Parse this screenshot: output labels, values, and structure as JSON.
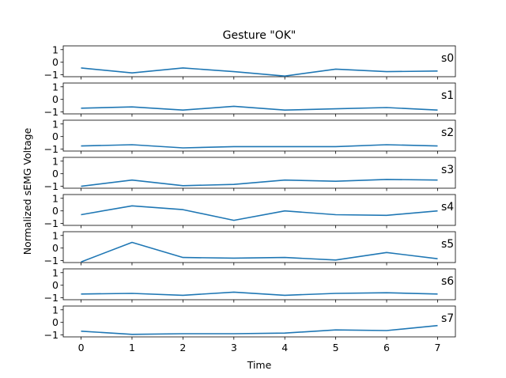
{
  "chart_data": {
    "type": "line",
    "title": "Gesture \"OK\"",
    "xlabel": "Time",
    "ylabel": "Normalized sEMG Voltage",
    "x": [
      0,
      1,
      2,
      3,
      4,
      5,
      6,
      7
    ],
    "xticks": [
      "0",
      "1",
      "2",
      "3",
      "4",
      "5",
      "6",
      "7"
    ],
    "xlim": [
      -0.35,
      7.35
    ],
    "ylim": [
      -1.15,
      1.3
    ],
    "yticks": [
      1,
      0,
      -1
    ],
    "ytick_labels": [
      "1",
      "0",
      "−1"
    ],
    "grid": false,
    "line_color": "#1f77b4",
    "series": [
      {
        "name": "s0",
        "values": [
          -0.45,
          -0.85,
          -0.45,
          -0.75,
          -1.1,
          -0.55,
          -0.75,
          -0.7
        ]
      },
      {
        "name": "s1",
        "values": [
          -0.7,
          -0.6,
          -0.85,
          -0.55,
          -0.85,
          -0.75,
          -0.65,
          -0.85
        ]
      },
      {
        "name": "s2",
        "values": [
          -0.75,
          -0.65,
          -0.9,
          -0.8,
          -0.8,
          -0.8,
          -0.65,
          -0.75
        ]
      },
      {
        "name": "s3",
        "values": [
          -1.0,
          -0.5,
          -0.95,
          -0.85,
          -0.5,
          -0.6,
          -0.45,
          -0.5
        ]
      },
      {
        "name": "s4",
        "values": [
          -0.3,
          0.4,
          0.1,
          -0.75,
          0.0,
          -0.3,
          -0.35,
          0.0
        ]
      },
      {
        "name": "s5",
        "values": [
          -1.1,
          0.45,
          -0.75,
          -0.8,
          -0.75,
          -0.95,
          -0.35,
          -0.85
        ]
      },
      {
        "name": "s6",
        "values": [
          -0.7,
          -0.65,
          -0.8,
          -0.55,
          -0.8,
          -0.65,
          -0.6,
          -0.7
        ]
      },
      {
        "name": "s7",
        "values": [
          -0.7,
          -0.95,
          -0.9,
          -0.9,
          -0.85,
          -0.6,
          -0.65,
          -0.25
        ]
      }
    ]
  }
}
